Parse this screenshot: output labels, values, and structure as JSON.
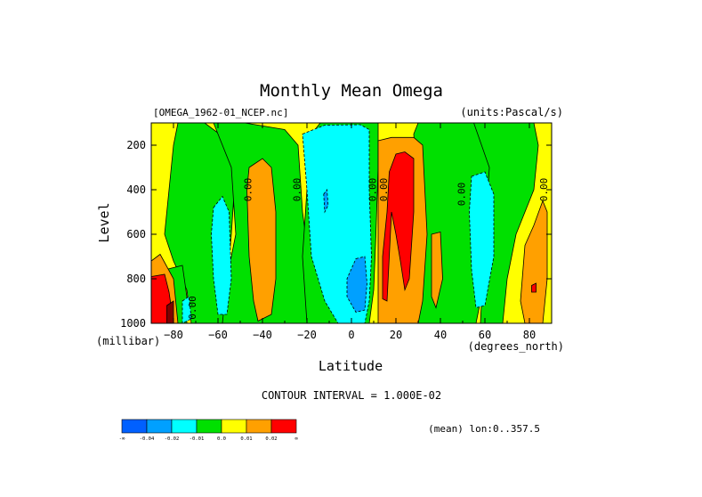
{
  "chart_data": {
    "type": "heatmap",
    "title": "Monthly Mean Omega",
    "file_label": "[OMEGA_1962-01_NCEP.nc]",
    "units_label": "(units:Pascal/s)",
    "xlabel": "Latitude",
    "ylabel": "Level",
    "x_unit": "(degrees_north)",
    "y_unit": "(millibar)",
    "xlim": [
      -90,
      90
    ],
    "ylim": [
      1000,
      100
    ],
    "x_ticks": [
      -80,
      -60,
      -40,
      -20,
      0,
      20,
      40,
      60,
      80
    ],
    "x_tick_labels": [
      "−80",
      "−60",
      "−40",
      "−20",
      "0",
      "20",
      "40",
      "60",
      "80"
    ],
    "y_ticks": [
      200,
      400,
      600,
      800,
      1000
    ],
    "y_tick_labels": [
      "200",
      "400",
      "600",
      "800",
      "1000"
    ],
    "contour_interval": "CONTOUR INTERVAL = 1.000E-02",
    "mean_note": "(mean) lon:0..357.5",
    "contour_labels": [
      {
        "text": "0.00",
        "lat": -45,
        "lev": 400
      },
      {
        "text": "0.00",
        "lat": -23,
        "lev": 400
      },
      {
        "text": "0.00",
        "lat": 11,
        "lev": 400
      },
      {
        "text": "0.00",
        "lat": 16,
        "lev": 400
      },
      {
        "text": "0.00",
        "lat": 51,
        "lev": 420
      },
      {
        "text": "0.00",
        "lat": 88,
        "lev": 400
      },
      {
        "text": "0.00",
        "lat": -70,
        "lev": 930
      }
    ],
    "levels": [
      {
        "label": "-∞",
        "color": "#0060ff"
      },
      {
        "label": "-0.04",
        "color": "#00a0ff"
      },
      {
        "label": "-0.02",
        "color": "#00ffff"
      },
      {
        "label": "-0.01",
        "color": "#00e000"
      },
      {
        "label": "0.0",
        "color": "#ffff00"
      },
      {
        "label": "0.01",
        "color": "#ffa000"
      },
      {
        "label": "0.02",
        "color": "#ff0000"
      },
      {
        "label": "∞",
        "color": ""
      }
    ],
    "colors": {
      "yellow": "#ffff00",
      "green": "#00e000",
      "cyan": "#00ffff",
      "blue": "#00a0ff",
      "orange": "#ffa000",
      "red": "#ff0000",
      "darkred": "#800000"
    }
  }
}
